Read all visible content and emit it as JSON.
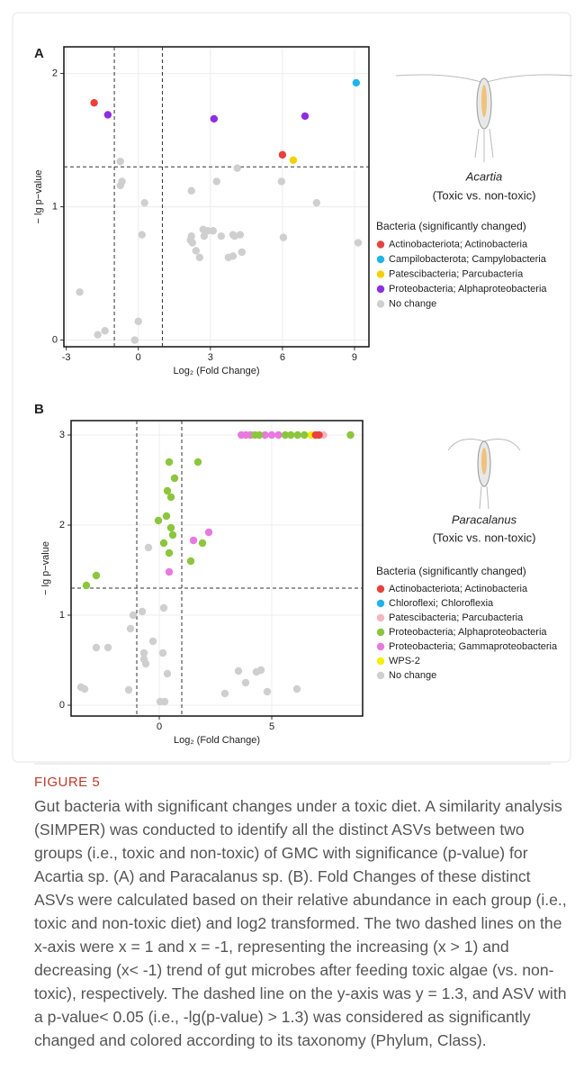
{
  "chart_data": [
    {
      "type": "scatter",
      "panel": "A",
      "x_label": "Log₂ (Fold Change)",
      "y_label": "− lg p−value",
      "species": "Acartia",
      "comparison": "(Toxic vs. non-toxic)",
      "legend_title": "Bacteria (significantly changed)",
      "xlim": [
        -3.1,
        9.6
      ],
      "ylim": [
        -0.05,
        2.2
      ],
      "xticks": [
        -3,
        0,
        3,
        6,
        9
      ],
      "yticks": [
        0,
        1,
        2
      ],
      "grid": true,
      "x_thresholds": [
        -1,
        1
      ],
      "y_threshold": 1.3,
      "series": [
        {
          "name": "Actinobacteriota; Actinobacteria",
          "color": "#e8413c",
          "x": [
            -1.84,
            6.0
          ],
          "y": [
            1.78,
            1.39
          ]
        },
        {
          "name": "Campilobacterota; Campylobacteria",
          "color": "#1fb5e8",
          "x": [
            9.07
          ],
          "y": [
            1.93
          ]
        },
        {
          "name": "Patescibacteria; Parcubacteria",
          "color": "#f5d000",
          "x": [
            6.45
          ],
          "y": [
            1.35
          ]
        },
        {
          "name": "Proteobacteria; Alphaproteobacteria",
          "color": "#8f2ee0",
          "x": [
            -1.27,
            3.15,
            6.94
          ],
          "y": [
            1.69,
            1.66,
            1.68
          ]
        },
        {
          "name": "No change",
          "color": "#cfcfcf",
          "x": [
            -0.75,
            -0.75,
            -0.68,
            0.26,
            0.15,
            2.21,
            3.26,
            4.12,
            5.96,
            7.42,
            9.15,
            6.04,
            -2.44,
            -1.69,
            -1.39,
            -0.15,
            0,
            2.17,
            2.21,
            2.4,
            2.55,
            2.25,
            2.74,
            2.89,
            2.7,
            3.11,
            3.45,
            3.75,
            3.94,
            4.01,
            4.24,
            4.31,
            3.94
          ],
          "y": [
            1.34,
            1.16,
            1.19,
            1.03,
            0.79,
            1.12,
            1.19,
            1.29,
            1.19,
            1.03,
            0.73,
            0.77,
            0.36,
            0.04,
            0.07,
            0.0,
            0.14,
            0.75,
            0.78,
            0.67,
            0.62,
            0.73,
            0.78,
            0.82,
            0.83,
            0.82,
            0.78,
            0.62,
            0.63,
            0.78,
            0.79,
            0.66,
            0.79
          ]
        }
      ]
    },
    {
      "type": "scatter",
      "panel": "B",
      "x_label": "Log₂ (Fold Change)",
      "y_label": "− lg p−value",
      "species": "Paracalanus",
      "comparison": "(Toxic vs. non-toxic)",
      "legend_title": "Bacteria (significantly changed)",
      "xlim": [
        -3.92,
        9.04
      ],
      "ylim": [
        -0.12,
        3.16
      ],
      "xticks": [
        0,
        5
      ],
      "yticks": [
        0,
        1,
        2,
        3
      ],
      "grid": true,
      "x_thresholds": [
        -1,
        1
      ],
      "y_threshold": 1.3,
      "series": [
        {
          "name": "Actinobacteriota; Actinobacteria",
          "color": "#e8413c",
          "x": [
            6.95,
            7.1
          ],
          "y": [
            3,
            3
          ]
        },
        {
          "name": "Chloroflexi; Chloroflexia",
          "color": "#1fb5e8",
          "x": [],
          "y": []
        },
        {
          "name": "Patescibacteria; Parcubacteria",
          "color": "#f4b6c0",
          "x": [
            7.3
          ],
          "y": [
            3
          ]
        },
        {
          "name": "Proteobacteria; Alphaproteobacteria",
          "color": "#8cc63e",
          "x": [
            4.25,
            4.45,
            5.6,
            5.85,
            6.15,
            6.45,
            8.5,
            0.44,
            1.72,
            0.68,
            0.36,
            0.52,
            -0.04,
            0.32,
            0.52,
            0.6,
            0.2,
            0.44,
            1.92,
            1.4,
            -2.8,
            -3.24
          ],
          "y": [
            3,
            3,
            3,
            3,
            3,
            3,
            3,
            2.7,
            2.7,
            2.52,
            2.38,
            2.31,
            2.05,
            2.1,
            1.97,
            1.89,
            1.8,
            1.69,
            1.8,
            1.6,
            1.44,
            1.33
          ]
        },
        {
          "name": "Proteobacteria; Gammaproteobacteria",
          "color": "#e879e0",
          "x": [
            3.65,
            3.85,
            4.05,
            4.7,
            5.0,
            5.3,
            0.44,
            1.52,
            2.2
          ],
          "y": [
            3,
            3,
            3,
            3,
            3,
            3,
            1.48,
            1.83,
            1.92
          ]
        },
        {
          "name": "WPS-2",
          "color": "#f7ef00",
          "x": [
            6.75
          ],
          "y": [
            3
          ]
        },
        {
          "name": "No change",
          "color": "#cfcfcf",
          "x": [
            -3.48,
            -3.32,
            -2.8,
            -2.28,
            -1.16,
            -1.28,
            -0.76,
            -0.48,
            -0.68,
            -0.68,
            -0.6,
            -0.28,
            0.16,
            -1.36,
            0.2,
            0.36,
            0.04,
            0.24,
            2.92,
            3.52,
            3.84,
            4.32,
            4.52,
            4.8,
            6.12
          ],
          "y": [
            0.2,
            0.18,
            0.64,
            0.64,
            1.0,
            0.85,
            1.04,
            1.75,
            0.58,
            0.51,
            0.46,
            0.71,
            0.58,
            0.17,
            1.08,
            0.35,
            0.04,
            0.04,
            0.13,
            0.38,
            0.25,
            0.37,
            0.39,
            0.15,
            0.18
          ]
        }
      ]
    }
  ],
  "figure_label": "FIGURE 5",
  "caption": "Gut bacteria with significant changes under a toxic diet. A similarity analysis (SIMPER) was conducted to identify all the distinct ASVs between two groups (i.e., toxic and non-toxic) of GMC with significance (p-value) for Acartia sp. (A) and Paracalanus sp. (B). Fold Changes of these distinct ASVs were calculated based on their relative abundance in each group (i.e., toxic and non-toxic diet) and log2 transformed. The two dashed lines on the x-axis were x = 1 and x = -1, representing the increasing (x > 1) and decreasing (x< -1) trend of gut microbes after feeding toxic algae (vs. non-toxic), respectively. The dashed line on the y-axis was y = 1.3, and ASV with a p-value< 0.05 (i.e., -lg(p-value) > 1.3) was considered as significantly changed and colored according to its taxonomy (Phylum, Class)."
}
